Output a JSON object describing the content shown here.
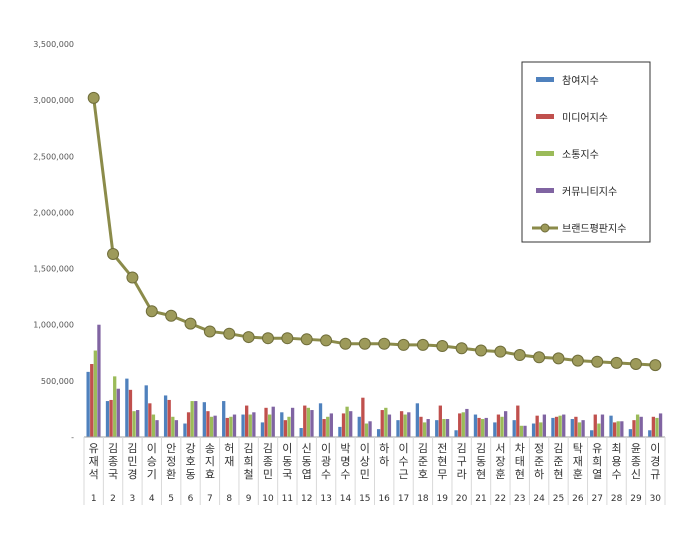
{
  "chart_data": {
    "type": "bar",
    "combo_line_series": "브랜드평판지수",
    "ylim": [
      0,
      3500000
    ],
    "yticks": [
      "-",
      "500,000",
      "1,000,000",
      "1,500,000",
      "2,000,000",
      "2,500,000",
      "3,000,000",
      "3,500,000"
    ],
    "ytick_values": [
      0,
      500000,
      1000000,
      1500000,
      2000000,
      2500000,
      3000000,
      3500000
    ],
    "categories": [
      "유재석",
      "김종국",
      "김민경",
      "이승기",
      "안정환",
      "강호동",
      "송지효",
      "허재",
      "김희철",
      "김종민",
      "이동국",
      "신동엽",
      "이광수",
      "박명수",
      "이상민",
      "하하",
      "이수근",
      "김준호",
      "전현무",
      "김구라",
      "김동현",
      "서장훈",
      "차태현",
      "정준하",
      "김준현",
      "탁재훈",
      "유희열",
      "최용수",
      "윤종신",
      "이경규"
    ],
    "ranks": [
      "1",
      "2",
      "3",
      "4",
      "5",
      "6",
      "7",
      "8",
      "9",
      "10",
      "11",
      "12",
      "13",
      "14",
      "15",
      "16",
      "17",
      "18",
      "19",
      "20",
      "21",
      "22",
      "23",
      "24",
      "25",
      "26",
      "27",
      "28",
      "29",
      "30"
    ],
    "series": [
      {
        "name": "참여지수",
        "color": "#4F81BD",
        "values": [
          580000,
          320000,
          520000,
          460000,
          370000,
          120000,
          310000,
          320000,
          200000,
          130000,
          220000,
          80000,
          300000,
          90000,
          180000,
          70000,
          150000,
          300000,
          150000,
          60000,
          200000,
          130000,
          150000,
          120000,
          170000,
          160000,
          60000,
          190000,
          70000,
          60000
        ]
      },
      {
        "name": "미디어지수",
        "color": "#C0504D",
        "values": [
          650000,
          330000,
          420000,
          300000,
          330000,
          220000,
          230000,
          170000,
          280000,
          260000,
          150000,
          280000,
          160000,
          210000,
          350000,
          240000,
          230000,
          180000,
          280000,
          210000,
          170000,
          200000,
          280000,
          190000,
          180000,
          180000,
          200000,
          130000,
          150000,
          180000
        ]
      },
      {
        "name": "소통지수",
        "color": "#9BBB59",
        "values": [
          770000,
          540000,
          230000,
          200000,
          180000,
          320000,
          180000,
          180000,
          200000,
          200000,
          180000,
          260000,
          180000,
          270000,
          120000,
          260000,
          200000,
          130000,
          160000,
          220000,
          160000,
          180000,
          100000,
          130000,
          190000,
          130000,
          120000,
          140000,
          200000,
          170000
        ]
      },
      {
        "name": "커뮤니티지수",
        "color": "#8064A2",
        "values": [
          1000000,
          430000,
          240000,
          150000,
          150000,
          320000,
          190000,
          200000,
          220000,
          270000,
          260000,
          240000,
          210000,
          230000,
          140000,
          200000,
          220000,
          160000,
          160000,
          250000,
          170000,
          230000,
          100000,
          200000,
          200000,
          150000,
          200000,
          140000,
          180000,
          210000
        ]
      },
      {
        "name": "브랜드평판지수",
        "color": "#7F7F3F",
        "values": [
          3020000,
          1630000,
          1420000,
          1120000,
          1080000,
          1010000,
          940000,
          920000,
          890000,
          880000,
          880000,
          870000,
          860000,
          830000,
          830000,
          830000,
          820000,
          820000,
          810000,
          790000,
          770000,
          760000,
          730000,
          710000,
          700000,
          680000,
          670000,
          660000,
          650000,
          640000
        ]
      }
    ],
    "legend_position": "top-right",
    "grid": false
  }
}
